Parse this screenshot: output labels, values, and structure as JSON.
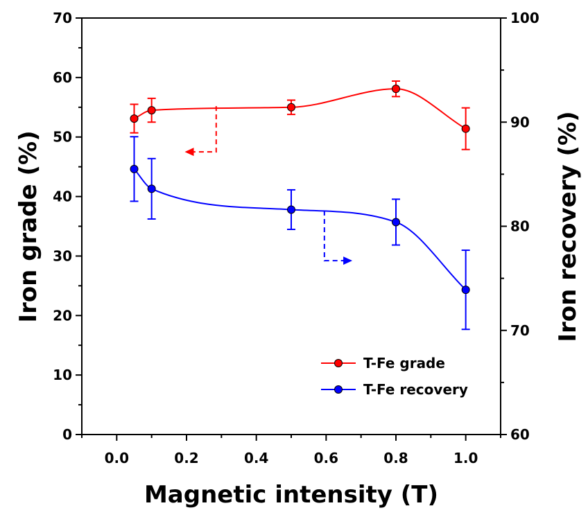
{
  "chart_data": {
    "type": "line",
    "title": "",
    "xlabel": "Magnetic intensity (T)",
    "ylabel": "Iron grade (%)",
    "y2label": "Iron recovery (%)",
    "xlim": [
      -0.1,
      1.1
    ],
    "ylim": [
      0,
      70
    ],
    "y2lim": [
      60,
      100
    ],
    "x_ticks": [
      "0.0",
      "0.2",
      "0.4",
      "0.6",
      "0.8",
      "1.0"
    ],
    "y_ticks": [
      "0",
      "10",
      "20",
      "30",
      "40",
      "50",
      "60",
      "70"
    ],
    "y2_ticks": [
      "60",
      "70",
      "80",
      "90",
      "100"
    ],
    "grid": false,
    "legend_position": "bottom-right",
    "series": [
      {
        "name": "T-Fe grade",
        "axis": "left",
        "color": "#ff0000",
        "x": [
          0.05,
          0.1,
          0.5,
          0.8,
          1.0
        ],
        "y": [
          53.1,
          54.5,
          55.0,
          58.1,
          51.4
        ],
        "err": [
          2.4,
          2.0,
          1.2,
          1.3,
          3.5
        ]
      },
      {
        "name": "T-Fe recovery",
        "axis": "right",
        "color": "#0000ff",
        "x": [
          0.05,
          0.1,
          0.5,
          0.8,
          1.0
        ],
        "y": [
          85.5,
          83.6,
          81.6,
          80.4,
          73.9
        ],
        "err": [
          3.1,
          2.9,
          1.9,
          2.2,
          3.8
        ]
      }
    ]
  }
}
